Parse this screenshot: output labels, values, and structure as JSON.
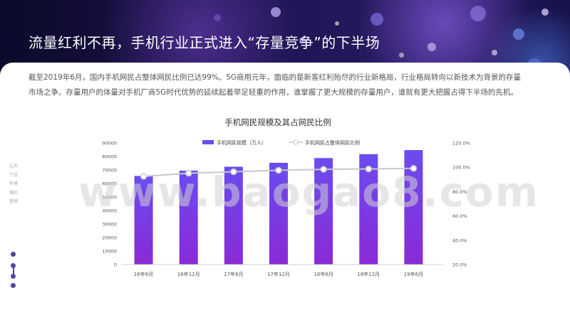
{
  "page": {
    "title": "流量红利不再，手机行业正式进入“存量竞争”的下半场",
    "intro": "截至2019年6月，国内手机网民占整体网民比例已达99%。5G商用元年，面临的是新客红利殆尽的行业新格局，行业格局转向以新技术为背景的存量市场之争。存量用户的体量对手机厂商5G时代优势的延续起着举足轻重的作用，谁掌握了更大规模的存量用户，谁就有更大把握占得下半场的先机。",
    "sidebar_text": "让天下没有难做的营销",
    "watermark": "www.baogao8.com"
  },
  "chart_data": {
    "type": "bar",
    "title": "手机网民规模及其占网民比例",
    "categories": [
      "16年6月",
      "16年12月",
      "17年6月",
      "17年12月",
      "18年6月",
      "18年12月",
      "19年6月"
    ],
    "series": [
      {
        "name": "手机网民规模（万人）",
        "type": "bar",
        "axis": "left",
        "values": [
          65600,
          69500,
          72400,
          75300,
          78800,
          81700,
          84700
        ]
      },
      {
        "name": "手机网民占整体网民比例",
        "type": "line",
        "axis": "right",
        "values": [
          92.5,
          95.1,
          96.3,
          97.5,
          98.3,
          98.6,
          99.1
        ]
      }
    ],
    "y_left": {
      "min": 0,
      "max": 90000,
      "ticks": [
        "0",
        "10000",
        "20000",
        "30000",
        "40000",
        "50000",
        "60000",
        "70000",
        "80000",
        "90000"
      ]
    },
    "y_right": {
      "min": 20,
      "max": 120,
      "ticks": [
        "20.0%",
        "40.0%",
        "60.0%",
        "80.0%",
        "100.0%",
        "120.0%"
      ]
    },
    "legend_position": "top-center",
    "grid": false,
    "colors": {
      "bar_top": "#6a4cf0",
      "bar_bottom": "#8a2ad6",
      "line": "#c8c8c8",
      "marker_fill": "#ffffff"
    }
  }
}
